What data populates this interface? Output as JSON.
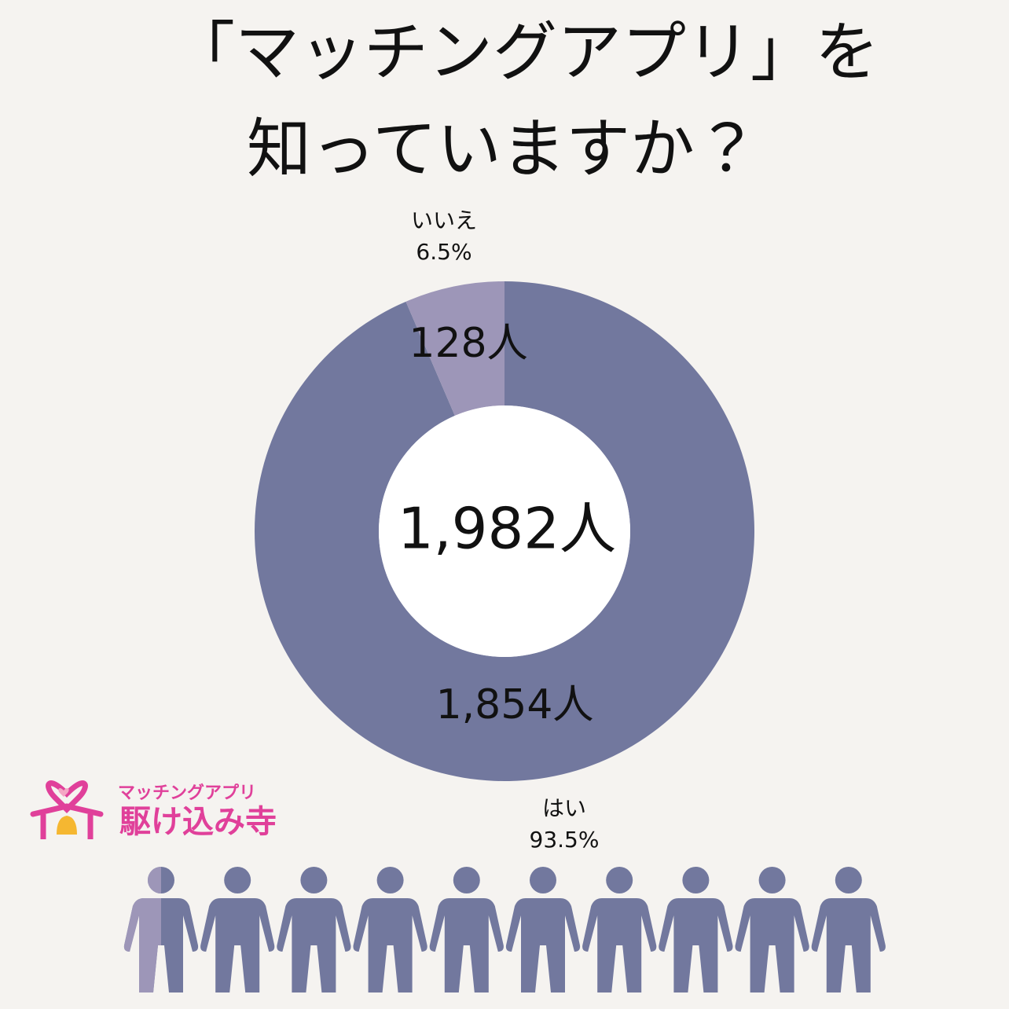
{
  "chart_data": {
    "type": "donut",
    "title": [
      "「マッチングアプリ」を",
      "知っていますか？"
    ],
    "categories": [
      "はい",
      "いいえ"
    ],
    "values": [
      1854,
      128
    ],
    "value_labels": [
      "1,854人",
      "128人"
    ],
    "shares": [
      93.5,
      6.5
    ],
    "share_labels": [
      "93.5%",
      "6.5%"
    ],
    "total": {
      "value": 1982,
      "label": "1,982人"
    },
    "colors": [
      "#72789e",
      "#9d96b8"
    ]
  },
  "logo": {
    "subtitle": "マッチングアプリ",
    "name": "駆け込み寺"
  }
}
